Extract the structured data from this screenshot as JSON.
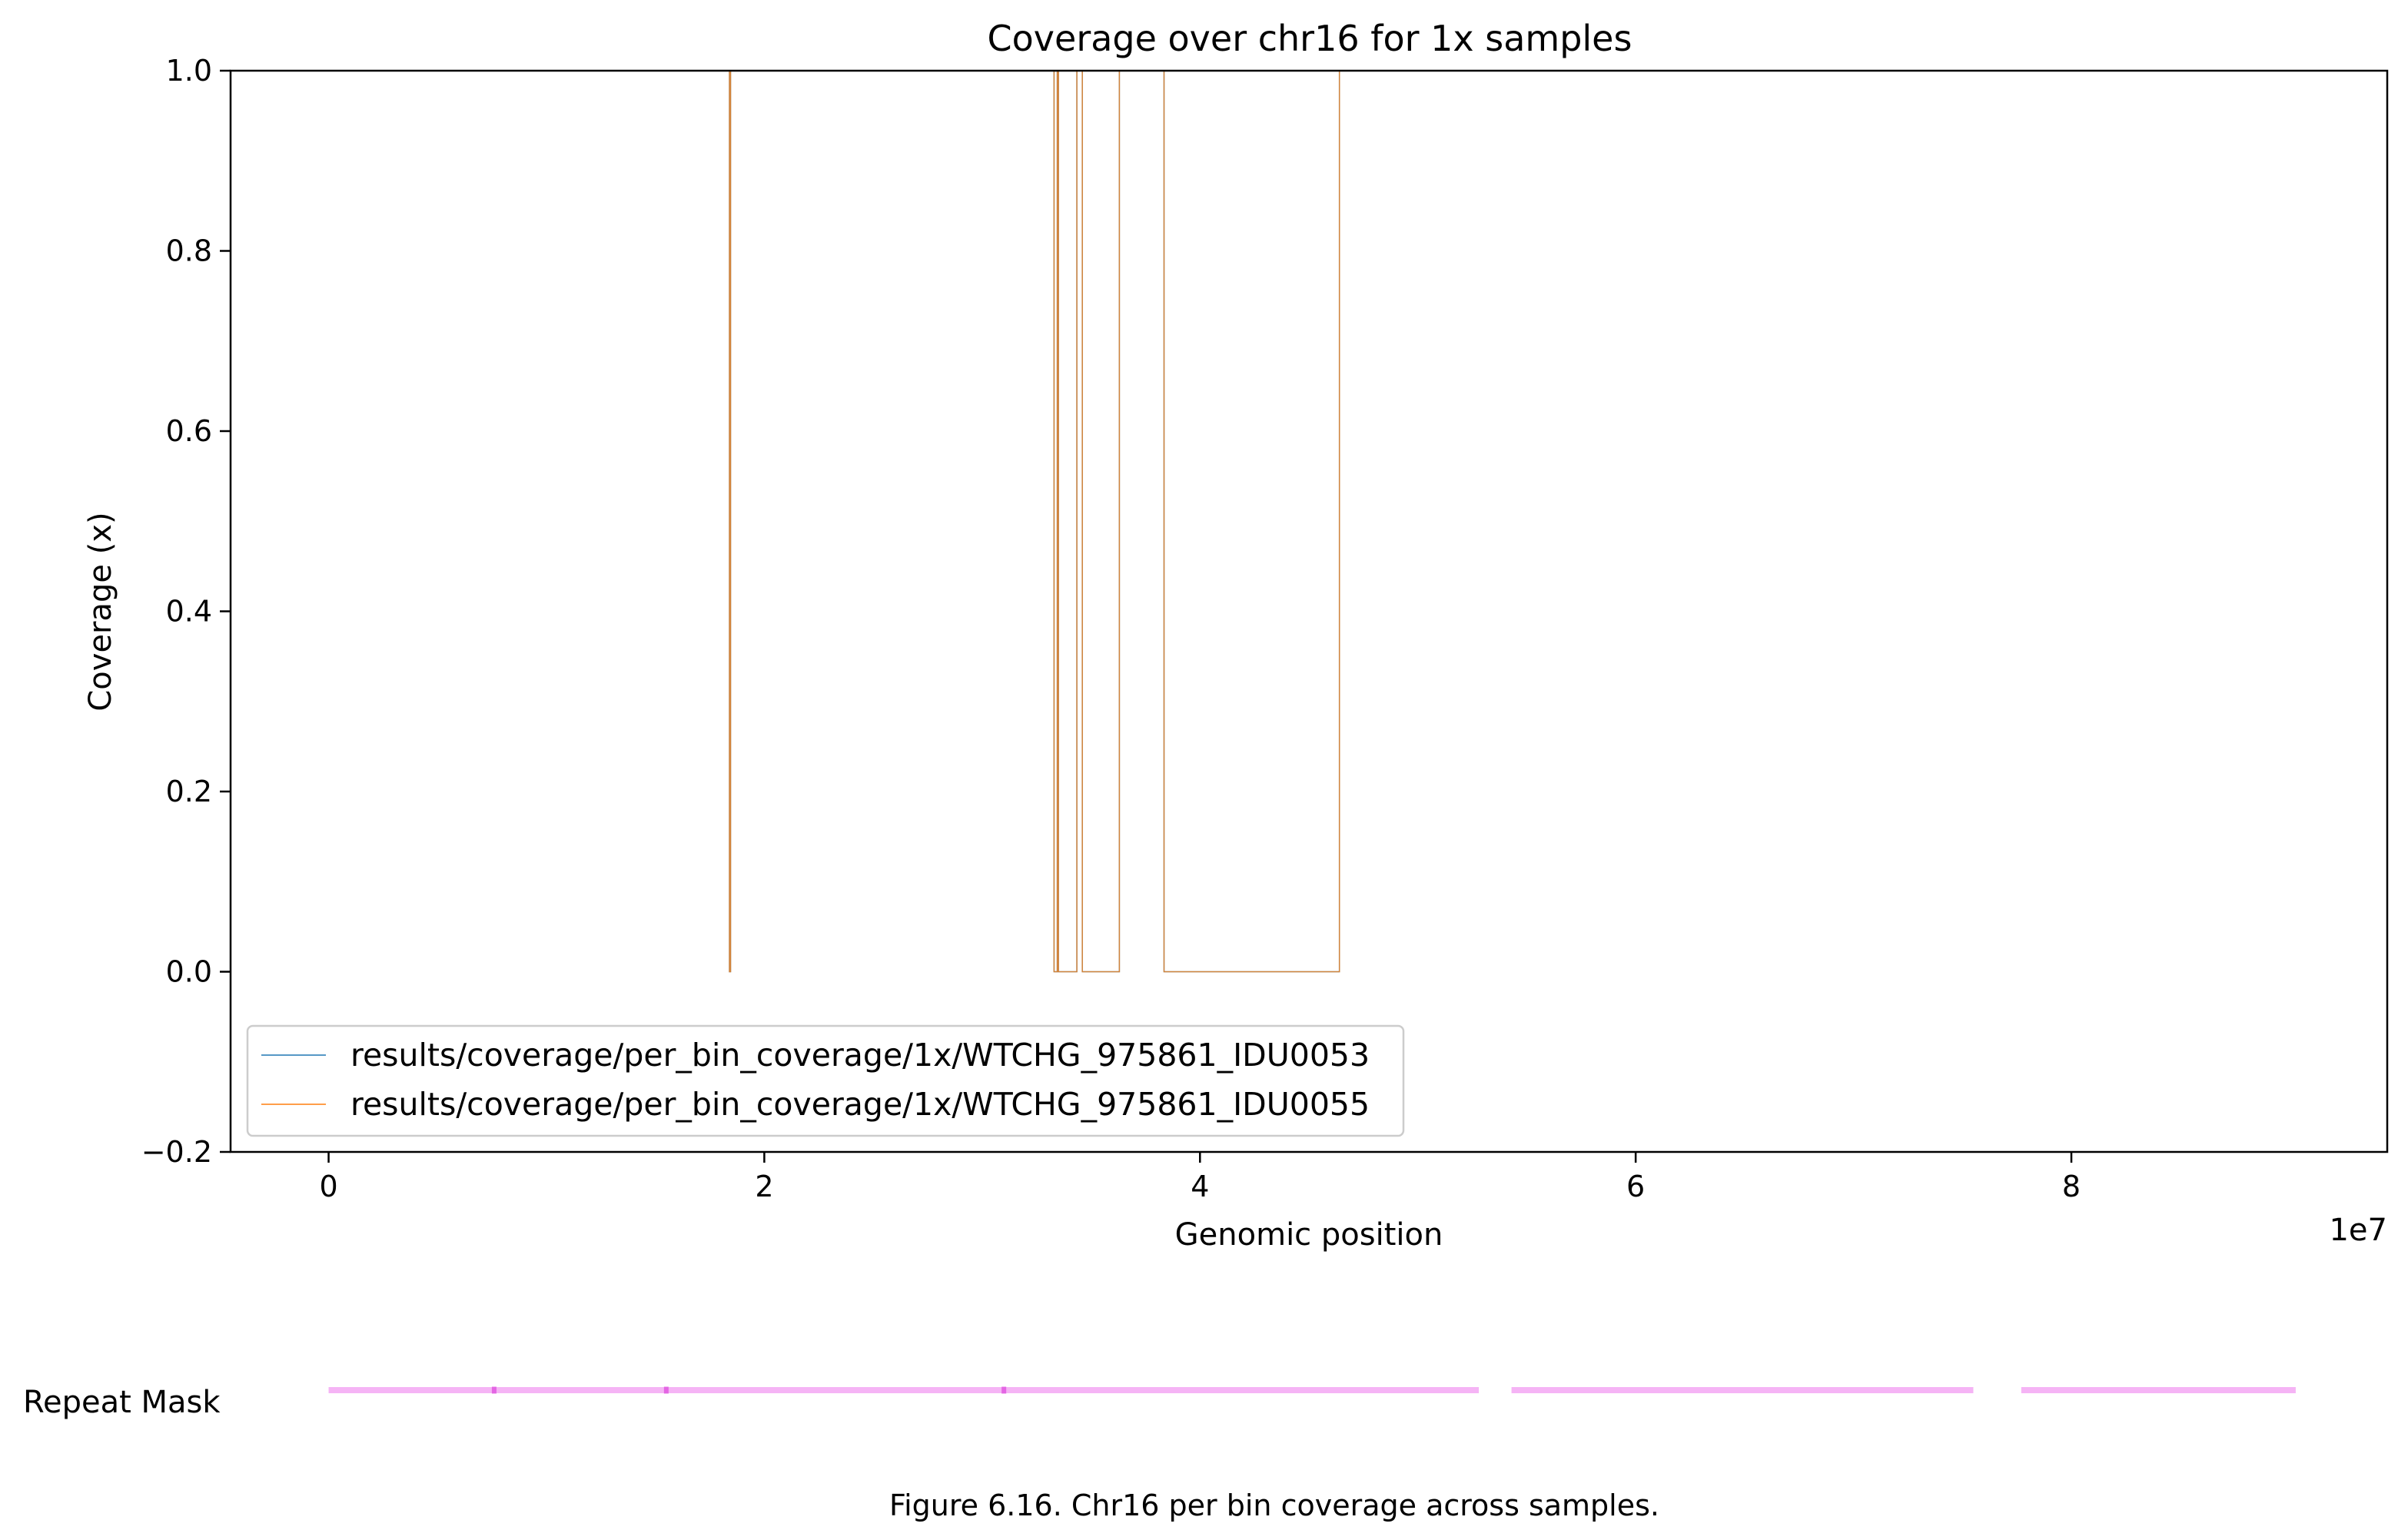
{
  "chart_data": {
    "type": "line",
    "title": "Coverage over chr16 for 1x samples",
    "xlabel": "Genomic position",
    "ylabel": "Coverage (x)",
    "x_offset_label": "1e7",
    "xlim": [
      -0.45,
      9.45
    ],
    "ylim": [
      -0.2,
      1.0
    ],
    "x_ticks": [
      0,
      2,
      4,
      6,
      8
    ],
    "x_tick_labels": [
      "0",
      "2",
      "4",
      "6",
      "8"
    ],
    "y_ticks": [
      -0.2,
      0.0,
      0.2,
      0.4,
      0.6,
      0.8,
      1.0
    ],
    "y_tick_labels": [
      "−0.2",
      "0.0",
      "0.2",
      "0.4",
      "0.6",
      "0.8",
      "1.0"
    ],
    "grid": false,
    "legend_position": "lower-left",
    "series": [
      {
        "name": "results/coverage/per_bin_coverage/1x/WTCHG_975861_IDU0053",
        "color": "#1f77b4",
        "x": [
          0.0,
          1.84,
          1.84,
          1.845,
          1.845,
          3.33,
          3.33,
          3.345,
          3.345,
          3.35,
          3.35,
          3.435,
          3.435,
          3.46,
          3.46,
          3.63,
          3.63,
          3.835,
          3.835,
          4.64,
          4.64,
          9.0
        ],
        "y": [
          1.0,
          1.0,
          0.0,
          0.0,
          1.0,
          1.0,
          0.0,
          0.0,
          1.0,
          1.0,
          0.0,
          0.0,
          1.0,
          1.0,
          0.0,
          0.0,
          1.0,
          1.0,
          0.0,
          0.0,
          1.0,
          1.0
        ]
      },
      {
        "name": "results/coverage/per_bin_coverage/1x/WTCHG_975861_IDU0055",
        "color": "#ff7f0e",
        "x": [
          0.0,
          1.84,
          1.84,
          1.845,
          1.845,
          3.33,
          3.33,
          3.345,
          3.345,
          3.35,
          3.35,
          3.435,
          3.435,
          3.46,
          3.46,
          3.63,
          3.63,
          3.835,
          3.835,
          4.64,
          4.64,
          9.475,
          9.475,
          9.48,
          9.48,
          9.5
        ],
        "y": [
          1.0,
          1.0,
          0.0,
          0.0,
          1.0,
          1.0,
          0.0,
          0.0,
          1.0,
          1.0,
          0.0,
          0.0,
          1.0,
          1.0,
          0.0,
          0.0,
          1.0,
          1.0,
          0.0,
          0.0,
          1.0,
          1.0,
          0.0,
          0.0,
          1.0,
          1.0
        ]
      }
    ],
    "repeat_mask": {
      "label": "Repeat Mask",
      "color": "#ee82ee",
      "segments": [
        [
          0.0,
          5.28
        ],
        [
          5.43,
          7.55
        ],
        [
          7.77,
          9.03
        ]
      ],
      "marks": [
        0.76,
        1.55,
        3.1
      ]
    }
  },
  "caption": "Figure 6.16. Chr16 per bin coverage across samples."
}
